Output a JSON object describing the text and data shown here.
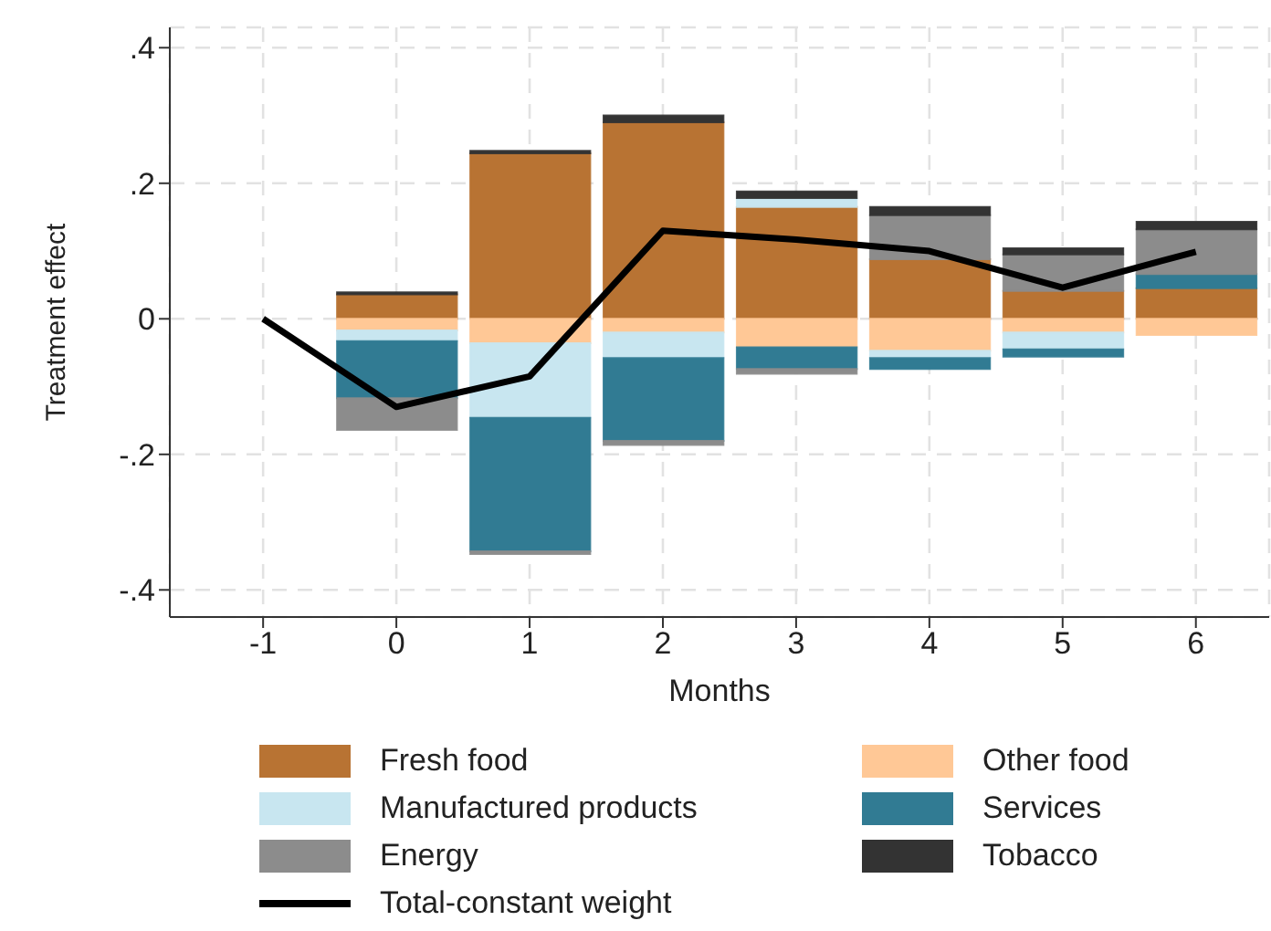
{
  "chart_data": {
    "type": "bar",
    "stacked": true,
    "xlabel": "Months",
    "ylabel": "Treatment effect",
    "x": [
      0,
      1,
      2,
      3,
      4,
      5,
      6
    ],
    "series": [
      {
        "name": "Fresh food",
        "color": "#b87333",
        "values": [
          0.036,
          0.244,
          0.29,
          0.165,
          0.088,
          0.041,
          0.045
        ]
      },
      {
        "name": "Other food",
        "color": "#ffc896",
        "values": [
          -0.017,
          -0.036,
          -0.02,
          -0.042,
          -0.047,
          -0.02,
          -0.024
        ]
      },
      {
        "name": "Manufactured products",
        "color": "#c8e6f0",
        "values": [
          -0.016,
          -0.11,
          -0.038,
          0.013,
          -0.011,
          -0.025,
          null
        ]
      },
      {
        "name": "Services",
        "color": "#317b93",
        "values": [
          -0.084,
          -0.197,
          -0.122,
          -0.032,
          -0.016,
          -0.011,
          0.021
        ]
      },
      {
        "name": "Energy",
        "color": "#8c8c8c",
        "values": [
          -0.047,
          -0.004,
          -0.006,
          -0.007,
          0.065,
          0.054,
          0.066
        ]
      },
      {
        "name": "Tobacco",
        "color": "#333333",
        "values": [
          0.003,
          0.004,
          0.01,
          0.01,
          0.012,
          0.009,
          0.011
        ]
      },
      {
        "name": "Total-constant weight",
        "type": "line",
        "color": "#000000",
        "x": [
          -1,
          0,
          1,
          2,
          3,
          4,
          5,
          6
        ],
        "values": [
          0,
          -0.13,
          -0.085,
          0.13,
          0.117,
          0.1,
          0.046,
          0.099
        ]
      }
    ],
    "xlim": [
      -1.7,
      6.55
    ],
    "xticks": [
      -1,
      0,
      1,
      2,
      3,
      4,
      5,
      6
    ],
    "ylim": [
      -0.44,
      0.43
    ],
    "yticks": [
      {
        "value": -0.4,
        "label": "-.4"
      },
      {
        "value": -0.2,
        "label": "-.2"
      },
      0,
      {
        "value": 0.2,
        "label": ".2"
      },
      {
        "value": 0.4,
        "label": ".4"
      }
    ],
    "grid": true,
    "legend": "bottom",
    "marker": "none"
  }
}
